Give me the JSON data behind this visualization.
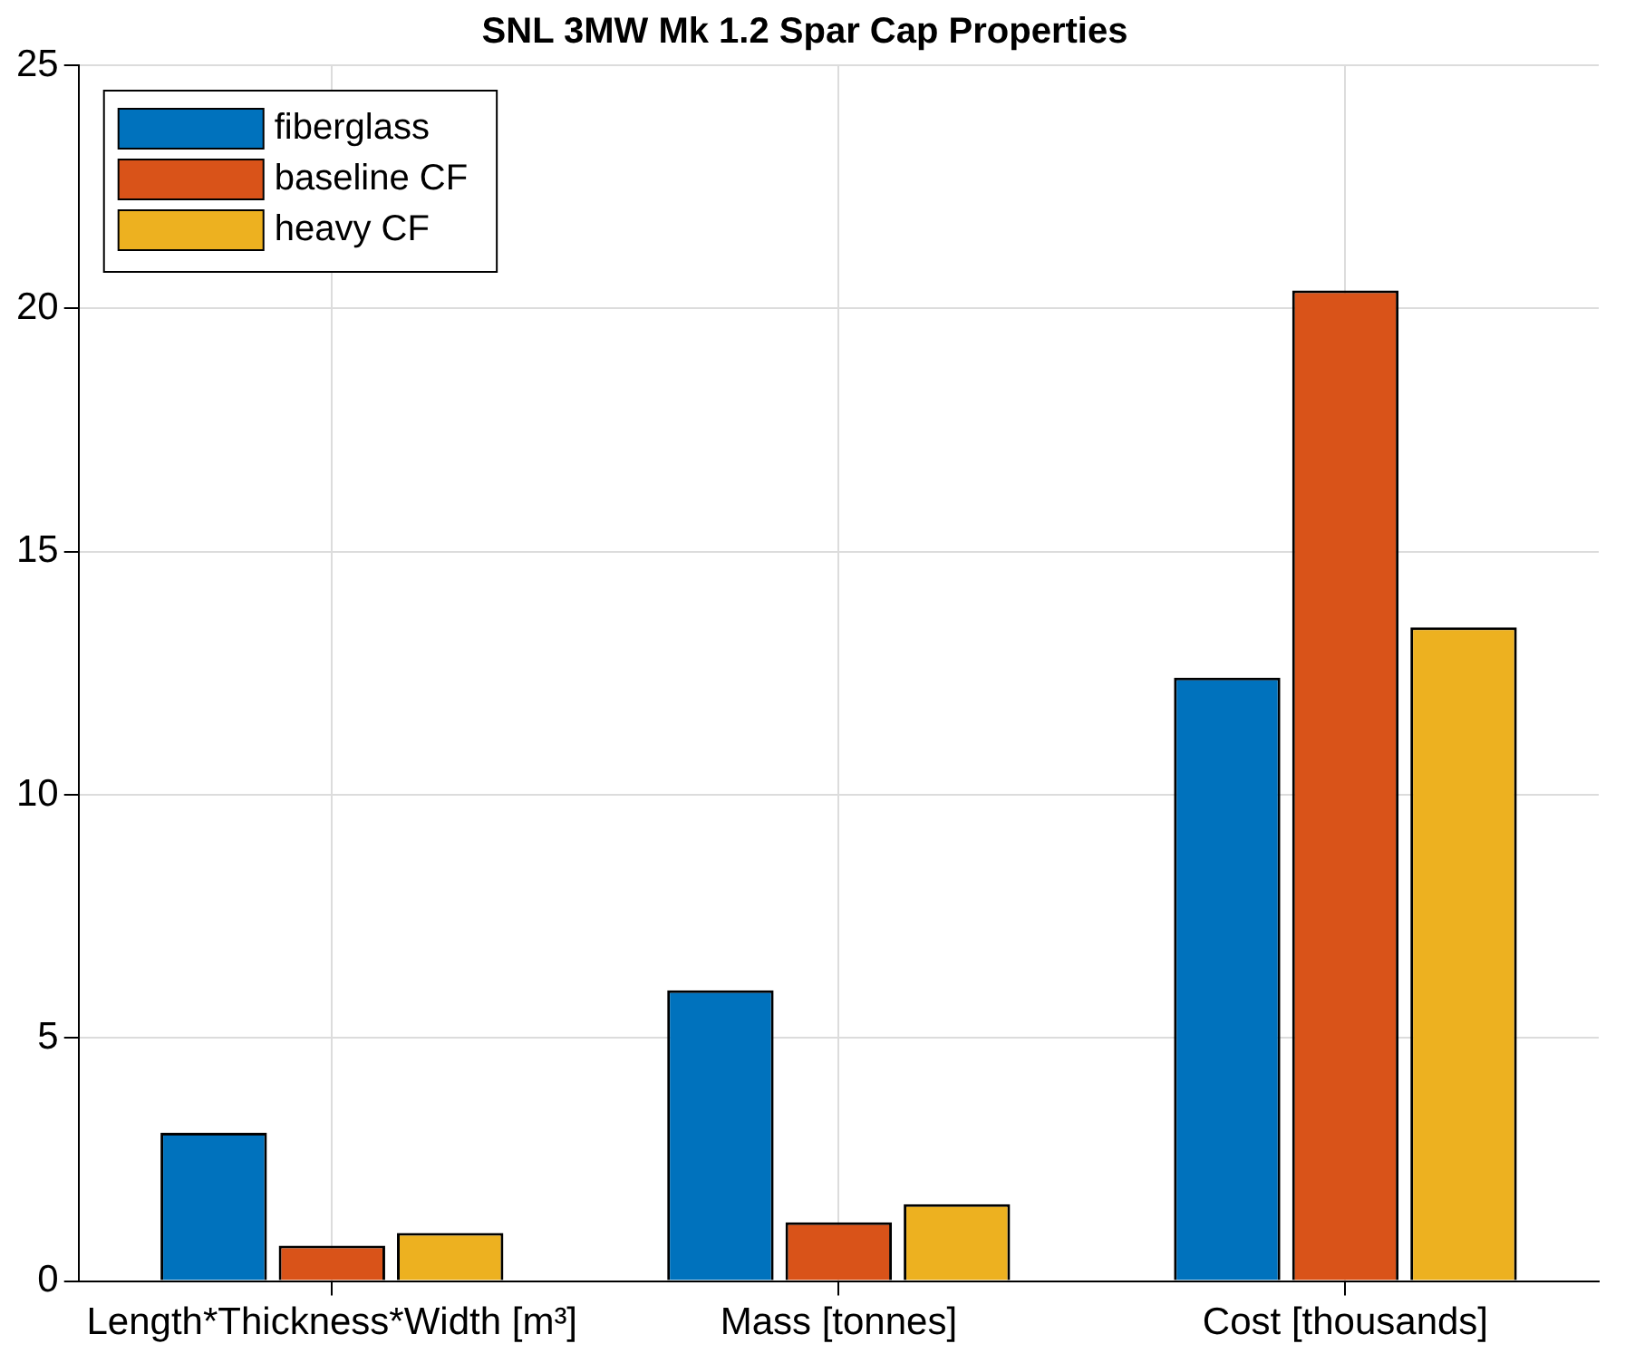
{
  "chart_data": {
    "type": "bar",
    "title": "SNL 3MW Mk 1.2 Spar Cap Properties",
    "categories": [
      "Length*Thickness*Width [m³]",
      "Mass [tonnes]",
      "Cost [thousands]"
    ],
    "series": [
      {
        "name": "fiberglass",
        "color": "#0072bd",
        "values": [
          3.05,
          5.98,
          12.41
        ]
      },
      {
        "name": "baseline CF",
        "color": "#d95319",
        "values": [
          0.73,
          1.21,
          20.37
        ]
      },
      {
        "name": "heavy CF",
        "color": "#edb120",
        "values": [
          0.99,
          1.58,
          13.44
        ]
      }
    ],
    "ylim": [
      0,
      25
    ],
    "yticks": [
      0,
      5,
      10,
      15,
      20,
      25
    ],
    "grid": true,
    "legend": "top left"
  }
}
